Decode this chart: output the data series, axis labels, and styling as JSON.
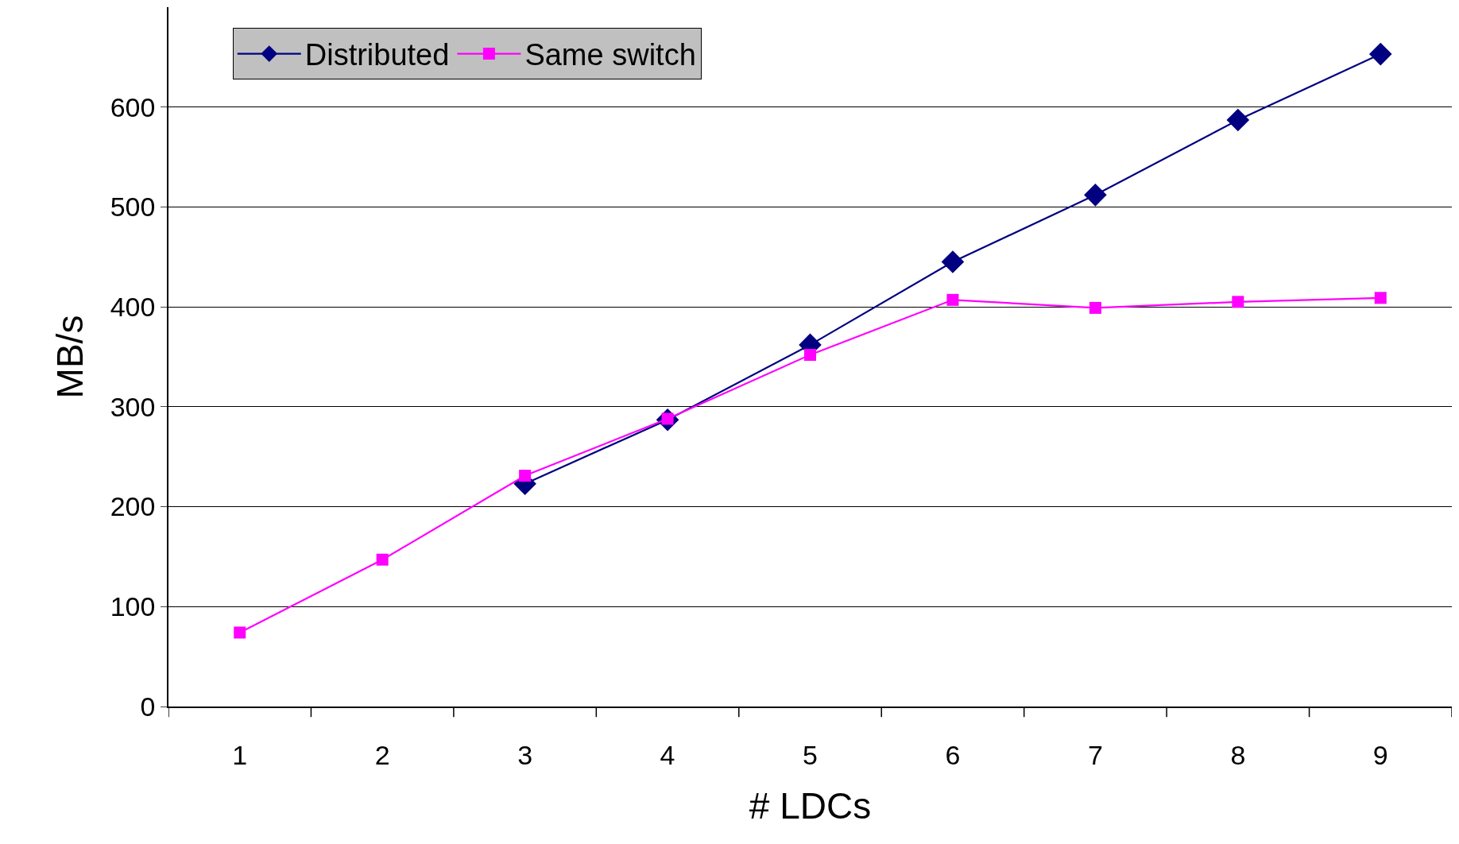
{
  "chart_data": {
    "type": "line",
    "xlabel": "# LDCs",
    "ylabel": "MB/s",
    "categories": [
      "1",
      "2",
      "3",
      "4",
      "5",
      "6",
      "7",
      "8",
      "9"
    ],
    "series": [
      {
        "name": "Distributed",
        "color": "#000080",
        "marker": "diamond",
        "values": [
          null,
          null,
          223,
          287,
          362,
          445,
          512,
          587,
          653
        ]
      },
      {
        "name": "Same switch",
        "color": "#ff00ff",
        "marker": "square",
        "values": [
          74,
          147,
          231,
          288,
          352,
          407,
          399,
          405,
          409
        ]
      }
    ],
    "ylim": [
      0,
      700
    ],
    "yticks": [
      0,
      100,
      200,
      300,
      400,
      500,
      600
    ],
    "grid": "y",
    "legend": "top left",
    "line_style": "solid"
  }
}
